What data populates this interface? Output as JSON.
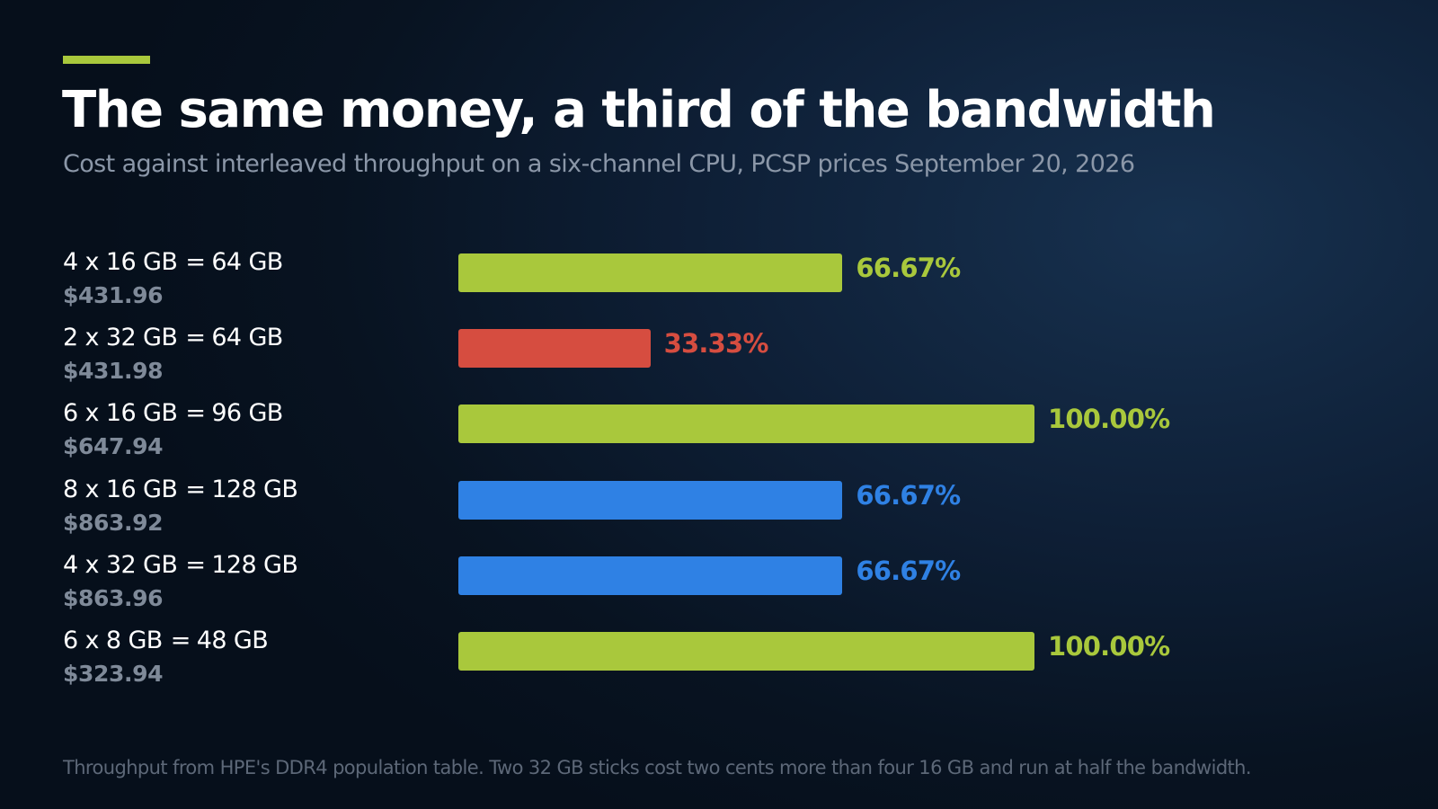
{
  "chart_data": {
    "type": "bar",
    "orientation": "horizontal",
    "title": "The same money, a third of the bandwidth",
    "subtitle": "Cost against interleaved throughput on a six-channel CPU, PCSP prices September 20, 2026",
    "categories": [
      "4 x 16 GB = 64 GB",
      "2 x 32 GB = 64 GB",
      "6 x 16 GB = 96 GB",
      "8 x 16 GB = 128 GB",
      "4 x 32 GB = 128 GB",
      "6 x 8 GB = 48 GB"
    ],
    "xlim": [
      0,
      100
    ],
    "grid": false,
    "rows": [
      {
        "config": "4 x 16 GB",
        "total": "64 GB",
        "price": "$431.96",
        "value": 66.67,
        "label": "66.67%",
        "color": "#a9c83c"
      },
      {
        "config": "2 x 32 GB",
        "total": "64 GB",
        "price": "$431.98",
        "value": 33.33,
        "label": "33.33%",
        "color": "#d64d40"
      },
      {
        "config": "6 x 16 GB",
        "total": "96 GB",
        "price": "$647.94",
        "value": 100.0,
        "label": "100.00%",
        "color": "#a9c83c"
      },
      {
        "config": "8 x 16 GB",
        "total": "128 GB",
        "price": "$863.92",
        "value": 66.67,
        "label": "66.67%",
        "color": "#2f81e4"
      },
      {
        "config": "4 x 32 GB",
        "total": "128 GB",
        "price": "$863.96",
        "value": 66.67,
        "label": "66.67%",
        "color": "#2f81e4"
      },
      {
        "config": "6 x 8 GB",
        "total": "48 GB",
        "price": "$323.94",
        "value": 100.0,
        "label": "100.00%",
        "color": "#a9c83c"
      }
    ]
  },
  "equals_sign": "=",
  "footnote": "Throughput from HPE's DDR4 population table. Two 32 GB sticks cost two cents more than four 16 GB and run at half the bandwidth.",
  "colors": {
    "accent": "#a9c83c",
    "full_bandwidth": "#a9c83c",
    "two_thirds_bandwidth": "#2f81e4",
    "one_third_bandwidth": "#d64d40"
  }
}
